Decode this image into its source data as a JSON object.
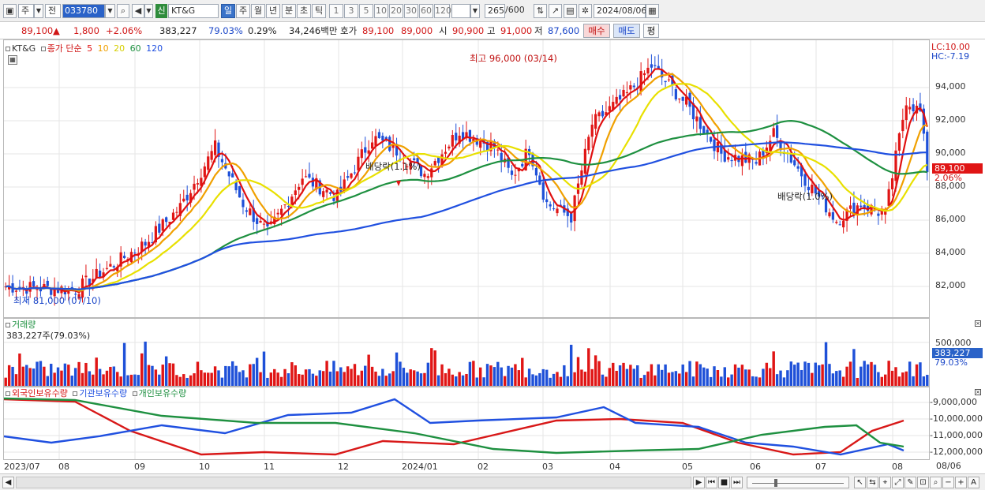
{
  "toolbar": {
    "type_label": "주",
    "prev_label": "전",
    "stock_code": "033780",
    "market_badge": "신",
    "stock_name": "KT&G",
    "periods": [
      "일",
      "주",
      "월",
      "년",
      "분",
      "초",
      "틱"
    ],
    "active_period": "일",
    "intervals": [
      "1",
      "3",
      "5",
      "10",
      "20",
      "30",
      "60",
      "120"
    ],
    "count": "265",
    "count_total": "/600",
    "date": "2024/08/06"
  },
  "quote": {
    "price": "89,100",
    "up_arrow": "▲",
    "change": "1,800",
    "change_pct": "+2.06%",
    "volume": "383,227",
    "volume_ratio": "79.03%",
    "turnover": "0.29%",
    "amount": "34,246백만",
    "ask_label": "호가",
    "ask1": "89,100",
    "ask2": "89,000",
    "open_label": "시",
    "open": "90,900",
    "high_label": "고",
    "high": "91,000",
    "low_label": "저",
    "low": "87,600",
    "buy_label": "매수",
    "sell_label": "매도",
    "eval_label": "평"
  },
  "price_panel": {
    "legend_name": "KT&G",
    "legend_ma": "종가 단순",
    "ma_periods": [
      "5",
      "10",
      "20",
      "60",
      "120"
    ],
    "ma_colors": [
      "#e01010",
      "#f0a000",
      "#e8e000",
      "#1e9040",
      "#2050e0"
    ],
    "lc": "LC:10.00",
    "hc": "HC:-7.19",
    "high_annot": "최고 96,000 (03/14)",
    "low_annot": "최저 81,000 (07/10)",
    "div1": "배당락(1.1%)",
    "div2": "배당락(1.0%)",
    "y_ticks": [
      "94,000",
      "92,000",
      "90,000",
      "88,000",
      "86,000",
      "84,000",
      "82,000"
    ],
    "price_tag": "89,100",
    "pct_tag": "2.06%"
  },
  "volume_panel": {
    "title": "거래량",
    "value": "383,227주(79.03%)",
    "y_tick": "500,000",
    "tag": "383,227",
    "pct": "79.03%"
  },
  "holdings_panel": {
    "series": [
      "외국인보유수량",
      "기관보유수량",
      "개인보유수량"
    ],
    "colors": [
      "#d81818",
      "#2050e0",
      "#1e9040"
    ],
    "y_ticks": [
      "-9,000,000",
      "-10,000,000",
      "-11,000,000",
      "-12,000,000"
    ]
  },
  "x_labels": [
    "2023/07",
    "08",
    "09",
    "10",
    "11",
    "12",
    "2024/01",
    "02",
    "03",
    "04",
    "05",
    "06",
    "07",
    "08",
    "08/06"
  ]
}
